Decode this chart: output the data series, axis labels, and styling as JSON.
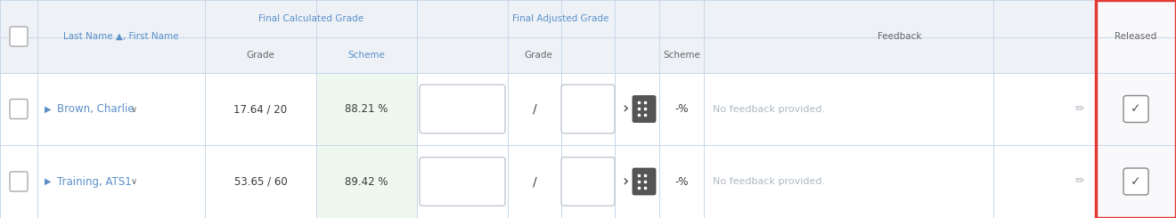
{
  "fig_width": 13.2,
  "fig_height": 2.45,
  "bg_color": "#ffffff",
  "header_bg": "#eef2f7",
  "row_bg": "#ffffff",
  "scheme_highlight": "#eef8ee",
  "border_color": "#c8d8e8",
  "text_color_blue": "#5b8fc9",
  "text_color_dark": "#3a3a3a",
  "text_color_gray": "#b0b8c0",
  "text_color_medium": "#666666",
  "red_border": "#e53935",
  "students": [
    {
      "name": "Brown, Charlie",
      "calc_grade": "17.64 / 20",
      "scheme": "88.21 %",
      "feedback": "No feedback provided.",
      "released": true
    },
    {
      "name": "Training, ATS1",
      "calc_grade": "53.65 / 60",
      "scheme": "89.42 %",
      "feedback": "No feedback provided.",
      "released": true
    }
  ]
}
